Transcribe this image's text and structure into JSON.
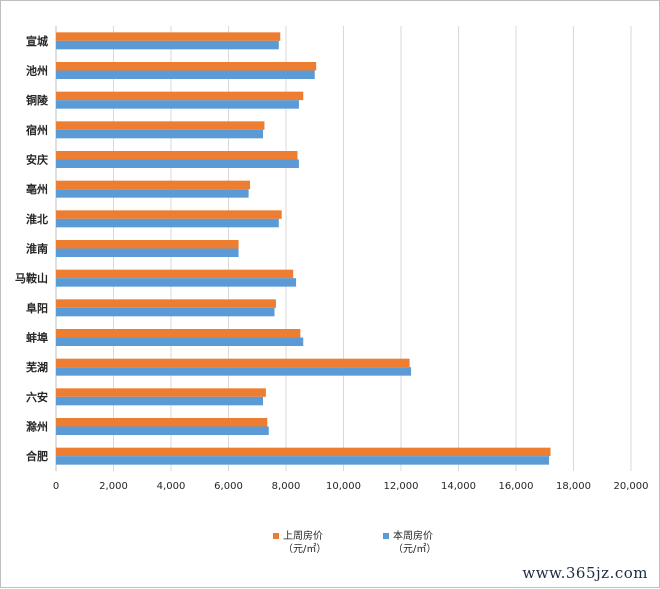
{
  "chart_data": {
    "type": "bar",
    "orientation": "horizontal",
    "categories": [
      "宣城",
      "池州",
      "铜陵",
      "宿州",
      "安庆",
      "亳州",
      "淮北",
      "淮南",
      "马鞍山",
      "阜阳",
      "蚌埠",
      "芜湖",
      "六安",
      "滁州",
      "合肥"
    ],
    "series": [
      {
        "name": "上周房价",
        "name_line2": "（元/㎡）",
        "color": "#ed7d31",
        "values": [
          7800,
          9050,
          8600,
          7250,
          8400,
          6750,
          7850,
          6350,
          8250,
          7650,
          8500,
          12300,
          7300,
          7350,
          17200
        ]
      },
      {
        "name": "本周房价",
        "name_line2": "（元/㎡）",
        "color": "#5b9bd5",
        "values": [
          7750,
          9000,
          8450,
          7200,
          8450,
          6700,
          7750,
          6350,
          8350,
          7600,
          8600,
          12350,
          7200,
          7400,
          17150
        ]
      }
    ],
    "xlim": [
      0,
      20000
    ],
    "xticks": [
      "0",
      "2,000",
      "4,000",
      "6,000",
      "8,000",
      "10,000",
      "12,000",
      "14,000",
      "16,000",
      "18,000",
      "20,000"
    ],
    "grid": true,
    "legend": "bottom"
  },
  "watermark": "www.365jz.com"
}
